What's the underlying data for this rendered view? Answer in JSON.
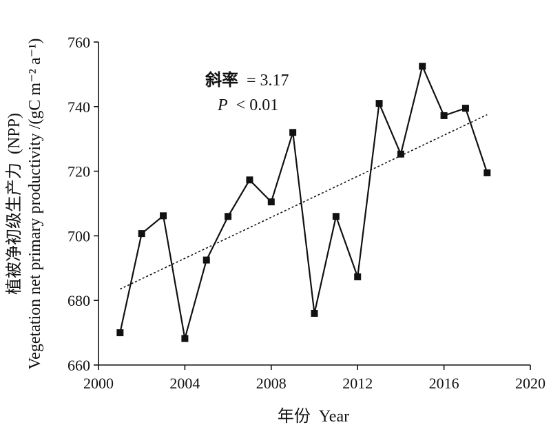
{
  "chart_data": {
    "type": "line",
    "x_axis": {
      "label_cn": "年份",
      "label_en": "Year",
      "range": [
        2000,
        2020
      ],
      "ticks": [
        2000,
        2004,
        2008,
        2012,
        2016,
        2020
      ]
    },
    "y_axis": {
      "label_cn": "植被净初级生产力",
      "label_en": "Vegetation net primary productivity",
      "label_paren": "(NPP)",
      "unit": "/(gC m⁻² a⁻¹)",
      "range": [
        660,
        760
      ],
      "ticks": [
        660,
        680,
        700,
        720,
        740,
        760
      ]
    },
    "series": [
      {
        "x": [
          2001,
          2002,
          2003,
          2004,
          2005,
          2006,
          2007,
          2008,
          2009,
          2010,
          2011,
          2012,
          2013,
          2014,
          2015,
          2016,
          2017,
          2018
        ],
        "y": [
          670,
          700.7,
          706.2,
          668.2,
          692.5,
          706,
          717.3,
          710.5,
          732,
          676,
          706,
          687.3,
          741,
          725.3,
          752.5,
          737.2,
          739.5,
          719.5
        ],
        "marker": "square",
        "color": "#111111"
      }
    ],
    "trendline": {
      "style": "dotted",
      "color": "#111111",
      "x": [
        2001,
        2018
      ],
      "y": [
        683.5,
        737.5
      ]
    },
    "annotation": {
      "slope_label": "斜率",
      "slope_text": "= 3.17",
      "p_symbol": "P",
      "p_text": "< 0.01"
    },
    "grid": false,
    "legend": "none"
  }
}
